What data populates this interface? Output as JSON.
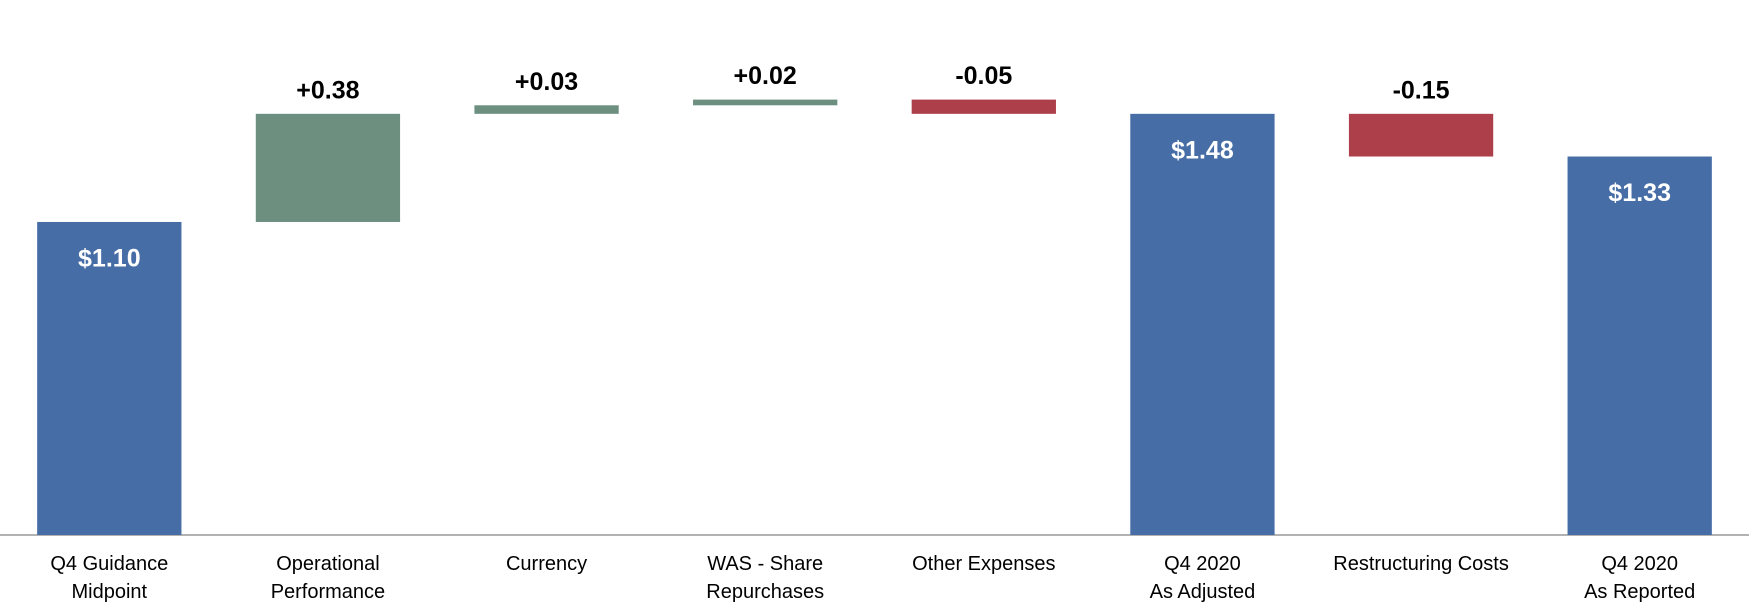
{
  "chart_data": {
    "type": "waterfall",
    "categories": [
      "Q4 Guidance\nMidpoint",
      "Operational\nPerformance",
      "Currency",
      "WAS - Share\nRepurchases",
      "Other Expenses",
      "Q4 2020\nAs Adjusted",
      "Restructuring Costs",
      "Q4 2020\nAs Reported"
    ],
    "values": [
      1.1,
      0.38,
      0.03,
      0.02,
      -0.05,
      1.48,
      -0.15,
      1.33
    ],
    "value_labels": [
      "$1.10",
      "+0.38",
      "+0.03",
      "+0.02",
      "-0.05",
      "$1.48",
      "-0.15",
      "$1.33"
    ],
    "measure": [
      "total",
      "relative",
      "relative",
      "relative",
      "relative",
      "total",
      "relative",
      "total"
    ],
    "colors": {
      "total": "#466da6",
      "increase": "#6c8f80",
      "decrease": "#ad3f4a"
    },
    "ylim": [
      0,
      1.88
    ]
  }
}
